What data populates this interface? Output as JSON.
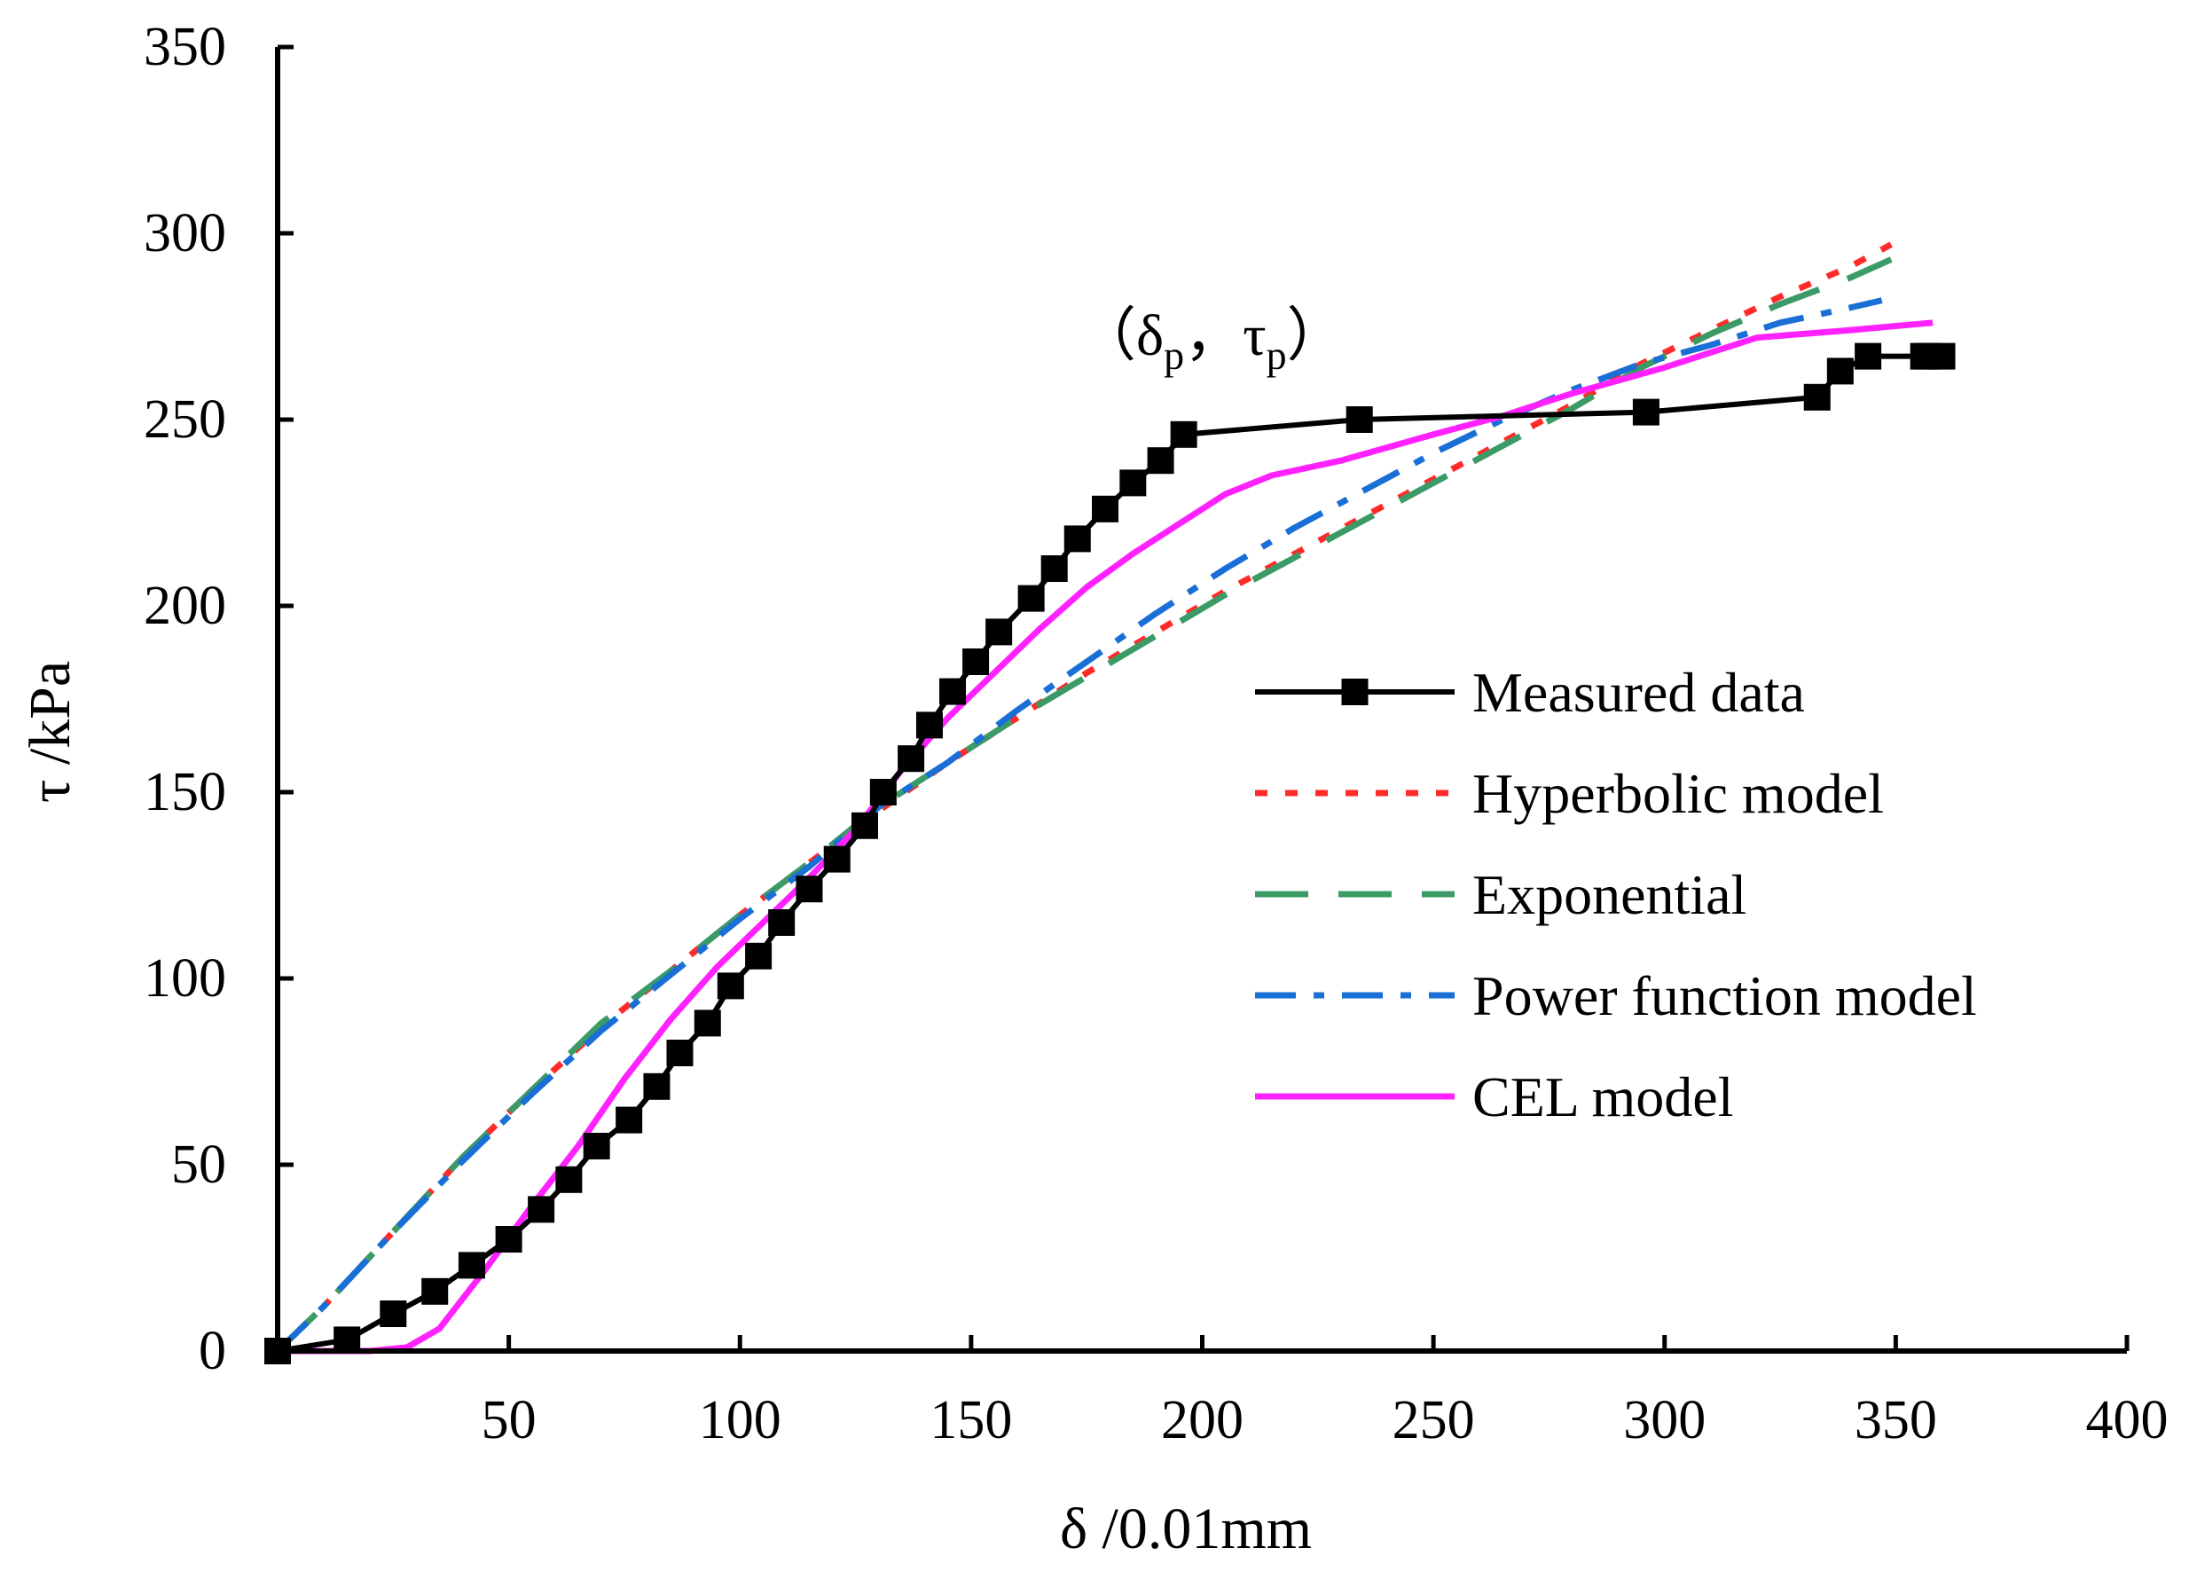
{
  "chart_data": {
    "type": "line",
    "title": "",
    "xlabel": "δ /0.01mm",
    "ylabel": "τ /kPa",
    "xlim": [
      0,
      400
    ],
    "ylim": [
      0,
      350
    ],
    "xticks": [
      50,
      100,
      150,
      200,
      250,
      300,
      350,
      400
    ],
    "yticks": [
      0,
      50,
      100,
      150,
      200,
      250,
      300,
      350
    ],
    "xtick_labels": [
      "50",
      "100",
      "150",
      "200",
      "250",
      "300",
      "350",
      "400"
    ],
    "ytick_labels": [
      "0",
      "50",
      "100",
      "150",
      "200",
      "250",
      "300",
      "350"
    ],
    "grid": false,
    "legend_position": "right",
    "annotation": {
      "open": "（δ",
      "sub1": "p",
      "mid": "，τ",
      "sub2": "p",
      "close": "）",
      "x": 220,
      "y": 270
    },
    "series": [
      {
        "name": "Measured data",
        "color": "#000000",
        "style": "solid-square-markers",
        "x": [
          0,
          15,
          25,
          34,
          42,
          50,
          57,
          63,
          69,
          76,
          82,
          87,
          93,
          98,
          104,
          109,
          115,
          121,
          127,
          131,
          137,
          141,
          146,
          151,
          156,
          163,
          168,
          173,
          179,
          185,
          191,
          196,
          234,
          296,
          333,
          338,
          344,
          356,
          357,
          360
        ],
        "y": [
          0,
          3,
          10,
          16,
          23,
          30,
          38,
          46,
          55,
          62,
          71,
          80,
          88,
          98,
          106,
          115,
          124,
          132,
          141,
          150,
          159,
          168,
          177,
          185,
          193,
          202,
          210,
          218,
          226,
          233,
          239,
          246,
          250,
          252,
          256,
          263,
          267,
          267,
          267,
          267
        ]
      },
      {
        "name": "Hyperbolic model",
        "color": "#ff2a2a",
        "style": "dotted",
        "x": [
          0,
          10,
          25,
          40,
          55,
          70,
          85,
          100,
          115,
          130,
          145,
          160,
          175,
          190,
          205,
          220,
          235,
          250,
          265,
          280,
          295,
          310,
          325,
          340,
          349
        ],
        "y": [
          0,
          12,
          32,
          52,
          70,
          87,
          102,
          117,
          131,
          145,
          158,
          170,
          182,
          193,
          204,
          214,
          224,
          234,
          244,
          254,
          265,
          274,
          283,
          291,
          297
        ]
      },
      {
        "name": "Exponential",
        "color": "#3c9a66",
        "style": "long-dash",
        "x": [
          0,
          10,
          25,
          40,
          55,
          70,
          85,
          100,
          115,
          130,
          145,
          160,
          175,
          190,
          205,
          220,
          235,
          250,
          265,
          280,
          295,
          310,
          325,
          340,
          349
        ],
        "y": [
          0,
          12,
          32,
          52,
          70,
          88,
          102,
          117,
          131,
          146,
          158,
          170,
          181,
          192,
          203,
          213,
          223,
          233,
          243,
          253,
          264,
          273,
          281,
          288,
          293
        ]
      },
      {
        "name": "Power function model",
        "color": "#1a6fd6",
        "style": "dash-dot",
        "x": [
          0,
          10,
          25,
          40,
          55,
          70,
          85,
          100,
          115,
          130,
          145,
          160,
          175,
          190,
          205,
          220,
          235,
          250,
          265,
          280,
          295,
          310,
          325,
          340,
          347
        ],
        "y": [
          0,
          12,
          32,
          51,
          69,
          86,
          101,
          116,
          130,
          146,
          158,
          172,
          185,
          198,
          210,
          221,
          231,
          241,
          250,
          258,
          265,
          270,
          276,
          280,
          282
        ]
      },
      {
        "name": "CEL model",
        "color": "#ff22ff",
        "style": "solid",
        "x": [
          0,
          10,
          20,
          28,
          35,
          45,
          55,
          65,
          75,
          85,
          95,
          105,
          115,
          125,
          135,
          145,
          155,
          165,
          175,
          185,
          195,
          205,
          215,
          230,
          250,
          265,
          280,
          300,
          320,
          340,
          358
        ],
        "y": [
          0,
          0,
          0,
          1,
          6,
          22,
          39,
          55,
          73,
          89,
          103,
          115,
          127,
          140,
          156,
          170,
          182,
          194,
          205,
          214,
          222,
          230,
          235,
          239,
          246,
          251,
          257,
          264,
          272,
          274,
          276
        ]
      }
    ]
  }
}
